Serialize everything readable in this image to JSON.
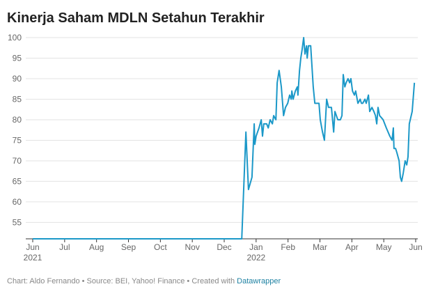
{
  "chart_data": {
    "type": "line",
    "title": "Kinerja Saham MDLN Setahun Terakhir",
    "x": [
      0,
      6.55,
      6.68,
      6.76,
      6.87,
      6.94,
      6.96,
      7.0,
      7.09,
      7.16,
      7.2,
      7.24,
      7.33,
      7.38,
      7.44,
      7.51,
      7.55,
      7.62,
      7.66,
      7.72,
      7.79,
      7.86,
      7.92,
      7.99,
      8.05,
      8.1,
      8.12,
      8.16,
      8.23,
      8.29,
      8.31,
      8.36,
      8.4,
      8.44,
      8.49,
      8.53,
      8.58,
      8.6,
      8.64,
      8.71,
      8.75,
      8.79,
      8.84,
      8.92,
      8.97,
      9.01,
      9.08,
      9.14,
      9.21,
      9.27,
      9.36,
      9.43,
      9.47,
      9.56,
      9.64,
      9.69,
      9.73,
      9.78,
      9.82,
      9.88,
      9.93,
      9.97,
      10.02,
      10.08,
      10.12,
      10.19,
      10.26,
      10.3,
      10.34,
      10.41,
      10.45,
      10.52,
      10.56,
      10.63,
      10.69,
      10.74,
      10.78,
      10.82,
      10.87,
      10.98,
      11.08,
      11.19,
      11.26,
      11.3,
      11.32,
      11.37,
      11.41,
      11.48,
      11.52,
      11.56,
      11.61,
      11.67,
      11.72,
      11.76,
      11.8,
      11.89,
      11.96
    ],
    "values": [
      51,
      51,
      77,
      63,
      66,
      79,
      74,
      76,
      78,
      80,
      76,
      79,
      79,
      78,
      80,
      79,
      81,
      80,
      89,
      92,
      88,
      81,
      83,
      84,
      86,
      85,
      87,
      85,
      87,
      88,
      86,
      92,
      95,
      97,
      100,
      96,
      98,
      95,
      98,
      98,
      93,
      88,
      84,
      84,
      84,
      80,
      77,
      75,
      85,
      83,
      83,
      77,
      82,
      80,
      80,
      81,
      91,
      88,
      89,
      90,
      89,
      90,
      87,
      86,
      87,
      84,
      85,
      84,
      84,
      85,
      84,
      86,
      82,
      83,
      82,
      81,
      79,
      83,
      81,
      80,
      78,
      76,
      75,
      78,
      73,
      73,
      72,
      70,
      66,
      65,
      67,
      70,
      69,
      71,
      79,
      82,
      89
    ],
    "color": "#1b98c8",
    "xlim": [
      0,
      12
    ],
    "xticks": [
      {
        "value": 0,
        "label": "Jun"
      },
      {
        "value": 1,
        "label": "Jul"
      },
      {
        "value": 2,
        "label": "Aug"
      },
      {
        "value": 3,
        "label": "Sep"
      },
      {
        "value": 4,
        "label": "Oct"
      },
      {
        "value": 5,
        "label": "Nov"
      },
      {
        "value": 6,
        "label": "Dec"
      },
      {
        "value": 7,
        "label": "Jan"
      },
      {
        "value": 8,
        "label": "Feb"
      },
      {
        "value": 9,
        "label": "Mar"
      },
      {
        "value": 10,
        "label": "Apr"
      },
      {
        "value": 11,
        "label": "May"
      },
      {
        "value": 12,
        "label": "Jun"
      }
    ],
    "xtick_years": [
      {
        "value": 0,
        "label": "2021"
      },
      {
        "value": 7,
        "label": "2022"
      }
    ],
    "ylim": [
      51,
      100
    ],
    "yticks": [
      55,
      60,
      65,
      70,
      75,
      80,
      85,
      90,
      95,
      100
    ],
    "grid": true,
    "credit": "Chart: Aldo Fernando • Source: BEI, Yahoo! Finance • Created with ",
    "credit_link": "Datawrapper"
  }
}
